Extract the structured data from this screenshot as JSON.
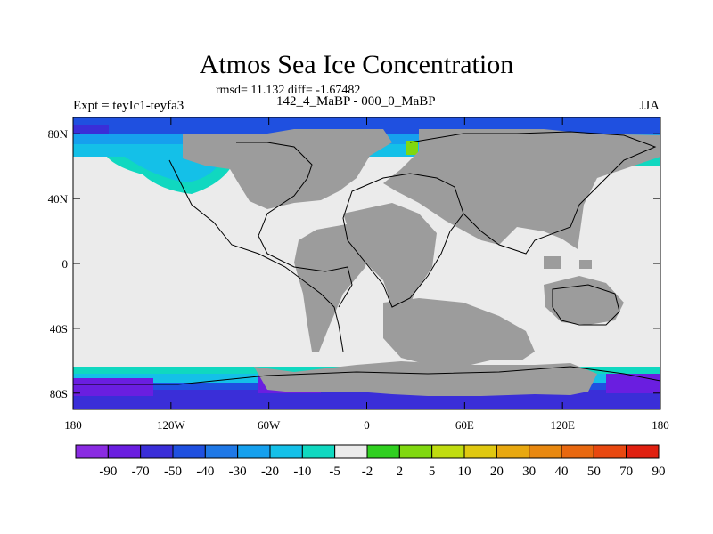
{
  "header": {
    "title": "Atmos Sea Ice Concentration",
    "subtitle": "rmsd= 11.132 diff= -1.67482",
    "left_label": "Expt = teyIc1-teyfa3",
    "center_label": "142_4_MaBP - 000_0_MaBP",
    "right_label": "JJA"
  },
  "map": {
    "land_color": "#9c9c9c",
    "ocean_color": "#ebebeb",
    "lon_range": [
      -180,
      180
    ],
    "lat_range": [
      -90,
      90
    ],
    "lat_ticks": [
      {
        "value": 80,
        "label": "80N"
      },
      {
        "value": 40,
        "label": "40N"
      },
      {
        "value": 0,
        "label": "0"
      },
      {
        "value": -40,
        "label": "40S"
      },
      {
        "value": -80,
        "label": "80S"
      }
    ],
    "lon_ticks": [
      {
        "value": -180,
        "label": "180"
      },
      {
        "value": -120,
        "label": "120W"
      },
      {
        "value": -60,
        "label": "60W"
      },
      {
        "value": 0,
        "label": "0"
      },
      {
        "value": 60,
        "label": "60E"
      },
      {
        "value": 120,
        "label": "120E"
      },
      {
        "value": 180,
        "label": "180"
      }
    ]
  },
  "colorbar": {
    "colors": [
      "#8a2be2",
      "#6a1ee0",
      "#3a2ed8",
      "#1f50e0",
      "#1f78e6",
      "#16a0ee",
      "#14c0e8",
      "#10d8c0",
      "#ebebeb",
      "#30d020",
      "#80d810",
      "#c0dc10",
      "#e0c810",
      "#e8a810",
      "#e88810",
      "#e86810",
      "#e84810",
      "#e02010"
    ],
    "labels": [
      "-90",
      "-70",
      "-50",
      "-40",
      "-30",
      "-20",
      "-10",
      "-5",
      "-2",
      "2",
      "5",
      "10",
      "20",
      "30",
      "40",
      "50",
      "70",
      "90"
    ]
  }
}
